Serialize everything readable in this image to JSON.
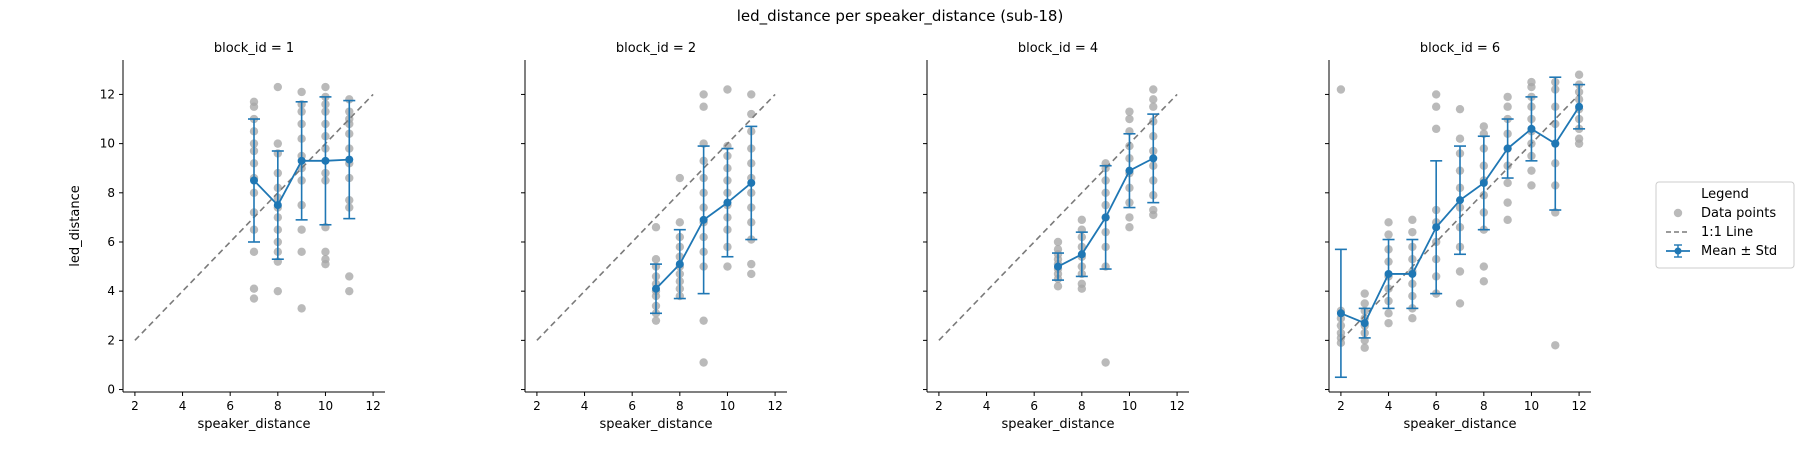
{
  "figure": {
    "suptitle": "led_distance per speaker_distance (sub-18)"
  },
  "legend": {
    "title": "Legend",
    "placement": "right",
    "entries": [
      {
        "label": "Data points",
        "kind": "scatter"
      },
      {
        "label": "1:1 Line",
        "kind": "dashed-line"
      },
      {
        "label": "Mean ± Std",
        "kind": "errorbar"
      }
    ]
  },
  "colors": {
    "points": "#a6a6a6",
    "identity_line": "#7a7a7a",
    "mean": "#1f77b4"
  },
  "chart_data": [
    {
      "type": "scatter",
      "title": "block_id = 1",
      "xlabel": "speaker_distance",
      "ylabel": "led_distance",
      "xlim": [
        1.5,
        12.5
      ],
      "ylim": [
        -0.1,
        13.4
      ],
      "xticks": [
        2,
        4,
        6,
        8,
        10,
        12
      ],
      "yticks": [
        0,
        2,
        4,
        6,
        8,
        10,
        12
      ],
      "identity_line": [
        2,
        12
      ],
      "points": [
        {
          "x": 7,
          "y": [
            3.7,
            4.1,
            5.6,
            6.5,
            7.2,
            8.0,
            8.6,
            9.2,
            9.7,
            10.0,
            10.5,
            11.0,
            11.5,
            11.7
          ]
        },
        {
          "x": 8,
          "y": [
            4.0,
            5.2,
            5.6,
            6.0,
            6.5,
            7.0,
            7.4,
            7.8,
            8.2,
            8.8,
            9.6,
            10.0,
            12.3
          ]
        },
        {
          "x": 9,
          "y": [
            3.3,
            5.6,
            6.5,
            7.5,
            8.5,
            9.0,
            9.5,
            10.2,
            10.8,
            11.3,
            11.6,
            12.1
          ]
        },
        {
          "x": 10,
          "y": [
            5.1,
            5.3,
            5.6,
            6.6,
            8.5,
            8.8,
            9.8,
            10.3,
            10.8,
            11.3,
            11.6,
            11.9,
            12.3
          ]
        },
        {
          "x": 11,
          "y": [
            4.0,
            4.6,
            7.4,
            7.7,
            8.6,
            9.2,
            9.8,
            10.4,
            10.8,
            11.0,
            11.3,
            11.8
          ]
        }
      ],
      "mean": [
        8.5,
        7.5,
        9.3,
        9.3,
        9.35
      ],
      "std": [
        2.5,
        2.2,
        2.4,
        2.6,
        2.4
      ],
      "mean_x": [
        7,
        8,
        9,
        10,
        11
      ]
    },
    {
      "type": "scatter",
      "title": "block_id = 2",
      "xlabel": "speaker_distance",
      "ylabel": "",
      "xlim": [
        1.5,
        12.5
      ],
      "ylim": [
        -0.1,
        13.4
      ],
      "xticks": [
        2,
        4,
        6,
        8,
        10,
        12
      ],
      "yticks": [
        0,
        2,
        4,
        6,
        8,
        10,
        12
      ],
      "identity_line": [
        2,
        12
      ],
      "points": [
        {
          "x": 7,
          "y": [
            2.8,
            3.1,
            3.4,
            3.8,
            4.0,
            4.3,
            4.6,
            5.0,
            5.3,
            6.6
          ]
        },
        {
          "x": 8,
          "y": [
            3.8,
            4.1,
            4.4,
            4.7,
            5.0,
            5.4,
            5.8,
            6.2,
            6.8,
            8.6
          ]
        },
        {
          "x": 9,
          "y": [
            1.1,
            2.8,
            5.0,
            5.6,
            6.2,
            6.8,
            7.4,
            8.0,
            8.6,
            9.3,
            10.0,
            11.5,
            12.0
          ]
        },
        {
          "x": 10,
          "y": [
            5.0,
            5.8,
            6.5,
            7.0,
            7.5,
            8.0,
            8.5,
            9.0,
            9.5,
            9.9,
            12.2
          ]
        },
        {
          "x": 11,
          "y": [
            4.7,
            5.1,
            6.1,
            6.8,
            7.4,
            8.0,
            8.6,
            9.2,
            9.8,
            10.5,
            11.2,
            12.0
          ]
        }
      ],
      "mean": [
        4.1,
        5.1,
        6.9,
        7.6,
        8.4
      ],
      "std": [
        1.0,
        1.4,
        3.0,
        2.2,
        2.3
      ],
      "mean_x": [
        7,
        8,
        9,
        10,
        11
      ]
    },
    {
      "type": "scatter",
      "title": "block_id = 4",
      "xlabel": "speaker_distance",
      "ylabel": "",
      "xlim": [
        1.5,
        12.5
      ],
      "ylim": [
        -0.1,
        13.4
      ],
      "xticks": [
        2,
        4,
        6,
        8,
        10,
        12
      ],
      "yticks": [
        0,
        2,
        4,
        6,
        8,
        10,
        12
      ],
      "identity_line": [
        2,
        12
      ],
      "points": [
        {
          "x": 7,
          "y": [
            4.2,
            4.5,
            4.7,
            4.9,
            5.1,
            5.3,
            5.5,
            5.7,
            6.0
          ]
        },
        {
          "x": 8,
          "y": [
            4.1,
            4.3,
            4.7,
            5.0,
            5.4,
            5.8,
            6.2,
            6.5,
            6.9
          ]
        },
        {
          "x": 9,
          "y": [
            1.1,
            5.0,
            5.8,
            6.4,
            7.0,
            7.5,
            8.0,
            8.5,
            9.0,
            9.2
          ]
        },
        {
          "x": 10,
          "y": [
            6.6,
            7.0,
            7.6,
            8.2,
            8.8,
            9.4,
            9.9,
            10.5,
            11.0,
            11.3
          ]
        },
        {
          "x": 11,
          "y": [
            7.1,
            7.3,
            7.9,
            8.5,
            9.1,
            9.7,
            10.3,
            10.9,
            11.5,
            11.8,
            12.2
          ]
        }
      ],
      "mean": [
        5.0,
        5.5,
        7.0,
        8.9,
        9.4
      ],
      "std": [
        0.55,
        0.9,
        2.1,
        1.5,
        1.8
      ],
      "mean_x": [
        7,
        8,
        9,
        10,
        11
      ]
    },
    {
      "type": "scatter",
      "title": "block_id = 6",
      "xlabel": "speaker_distance",
      "ylabel": "",
      "xlim": [
        1.5,
        12.5
      ],
      "ylim": [
        -0.1,
        13.4
      ],
      "xticks": [
        2,
        4,
        6,
        8,
        10,
        12
      ],
      "yticks": [
        0,
        2,
        4,
        6,
        8,
        10,
        12
      ],
      "identity_line": [
        2,
        12
      ],
      "points": [
        {
          "x": 2,
          "y": [
            1.9,
            2.1,
            2.3,
            2.6,
            2.9,
            3.2,
            12.2
          ]
        },
        {
          "x": 3,
          "y": [
            1.7,
            2.0,
            2.3,
            2.6,
            2.9,
            3.2,
            3.5,
            3.9
          ]
        },
        {
          "x": 4,
          "y": [
            2.7,
            3.1,
            3.6,
            4.1,
            4.6,
            5.2,
            5.7,
            6.3,
            6.8
          ]
        },
        {
          "x": 5,
          "y": [
            2.9,
            3.3,
            3.8,
            4.3,
            4.8,
            5.3,
            5.8,
            6.4,
            6.9
          ]
        },
        {
          "x": 6,
          "y": [
            3.9,
            4.6,
            5.3,
            6.0,
            6.8,
            7.3,
            10.6,
            11.5,
            12.0
          ]
        },
        {
          "x": 7,
          "y": [
            3.5,
            4.8,
            5.8,
            6.6,
            7.4,
            8.2,
            8.9,
            9.6,
            10.2,
            11.4
          ]
        },
        {
          "x": 8,
          "y": [
            4.4,
            5.0,
            6.5,
            7.2,
            7.9,
            8.5,
            9.1,
            9.8,
            10.4,
            10.7
          ]
        },
        {
          "x": 9,
          "y": [
            6.9,
            7.6,
            8.4,
            9.1,
            9.8,
            10.4,
            11.0,
            11.5,
            11.9
          ]
        },
        {
          "x": 10,
          "y": [
            8.3,
            8.9,
            9.5,
            10.0,
            10.5,
            11.0,
            11.5,
            11.9,
            12.3,
            12.5
          ]
        },
        {
          "x": 11,
          "y": [
            1.8,
            7.2,
            8.3,
            9.2,
            10.0,
            10.8,
            11.5,
            12.2,
            12.5
          ]
        },
        {
          "x": 12,
          "y": [
            10.0,
            10.2,
            10.6,
            11.0,
            11.4,
            11.8,
            12.1,
            12.4,
            12.8
          ]
        }
      ],
      "mean": [
        3.1,
        2.7,
        4.7,
        4.7,
        6.6,
        7.7,
        8.4,
        9.8,
        10.6,
        10.0,
        11.5
      ],
      "std": [
        2.6,
        0.6,
        1.4,
        1.4,
        2.7,
        2.2,
        1.9,
        1.2,
        1.3,
        2.7,
        0.9
      ],
      "mean_x": [
        2,
        3,
        4,
        5,
        6,
        7,
        8,
        9,
        10,
        11,
        12
      ]
    }
  ]
}
